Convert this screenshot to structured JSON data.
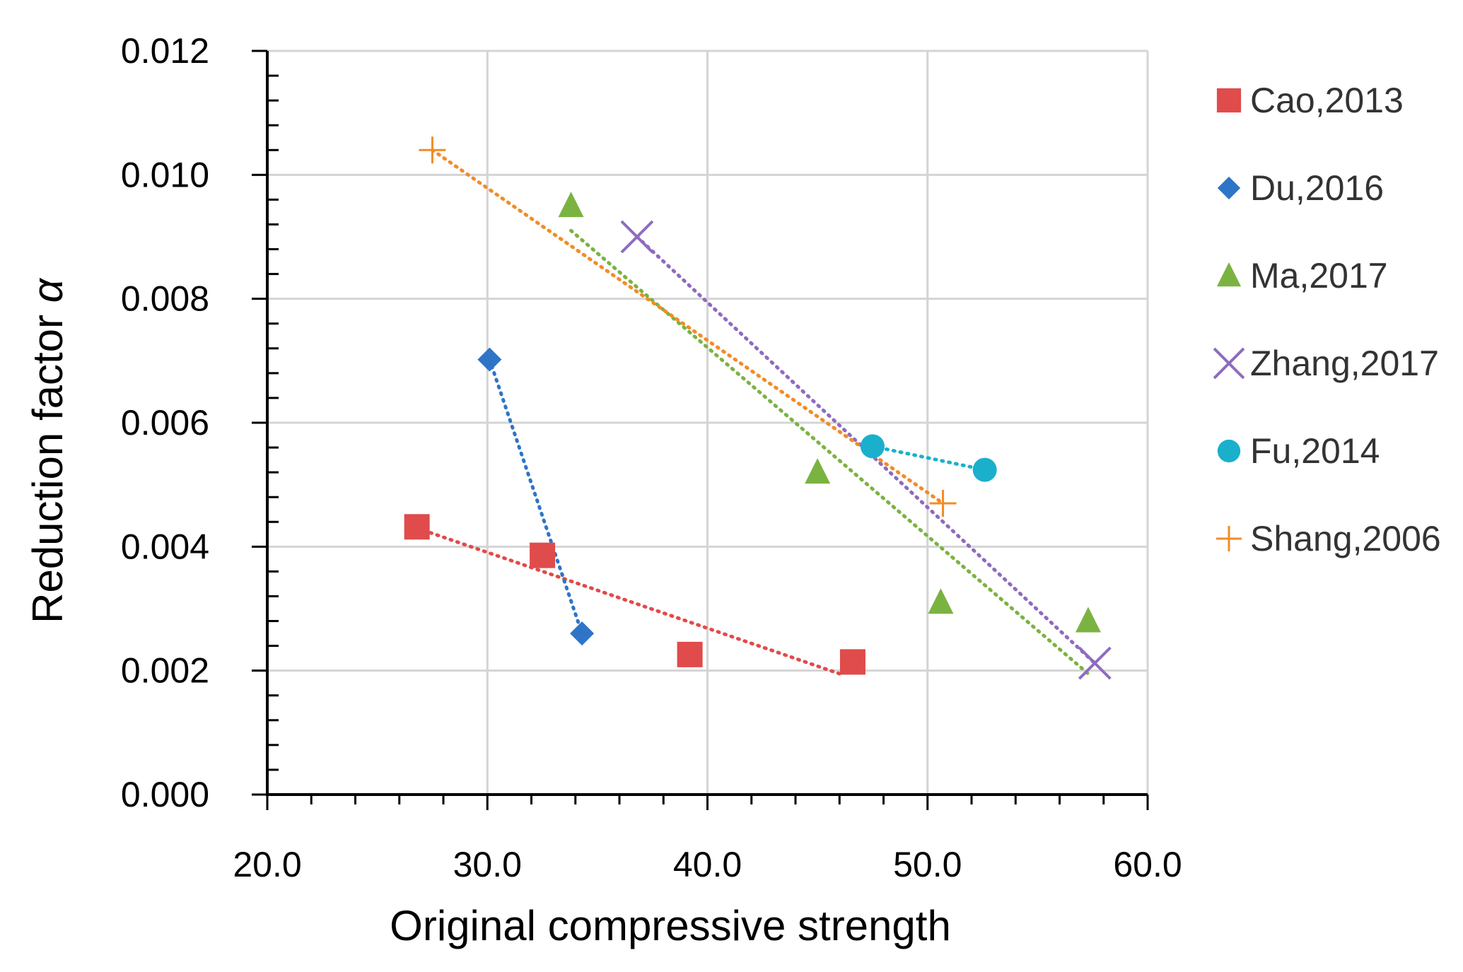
{
  "chart_data": {
    "type": "scatter",
    "title": "",
    "xlabel": "Original compressive strength",
    "ylabel": "Reduction factor",
    "ylabel_symbol": "α",
    "xlim": [
      20,
      60
    ],
    "ylim": [
      0,
      0.012
    ],
    "x_ticks": [
      "20.0",
      "30.0",
      "40.0",
      "50.0",
      "60.0"
    ],
    "y_ticks": [
      "0.000",
      "0.002",
      "0.004",
      "0.006",
      "0.008",
      "0.010",
      "0.012"
    ],
    "grid": true,
    "legend_position": "right",
    "series": [
      {
        "name": "Cao,2013",
        "marker": "square",
        "color": "#e04b4b",
        "points": [
          [
            26.8,
            0.00432
          ],
          [
            32.5,
            0.00386
          ],
          [
            39.2,
            0.00226
          ],
          [
            46.6,
            0.00214
          ]
        ],
        "trendline": [
          [
            26.8,
            0.0043
          ],
          [
            46.0,
            0.00195
          ]
        ]
      },
      {
        "name": "Du,2016",
        "marker": "diamond",
        "color": "#2e75c8",
        "points": [
          [
            30.1,
            0.00702
          ],
          [
            34.3,
            0.0026
          ]
        ],
        "trendline": [
          [
            30.1,
            0.00702
          ],
          [
            34.3,
            0.0026
          ]
        ]
      },
      {
        "name": "Ma,2017",
        "marker": "triangle",
        "color": "#7bb342",
        "points": [
          [
            33.8,
            0.0095
          ],
          [
            45.0,
            0.0052
          ],
          [
            50.6,
            0.0031
          ],
          [
            57.3,
            0.0028
          ]
        ],
        "trendline": [
          [
            33.8,
            0.0091
          ],
          [
            57.3,
            0.00195
          ]
        ]
      },
      {
        "name": "Zhang,2017",
        "marker": "x",
        "color": "#8e6bbf",
        "points": [
          [
            36.8,
            0.009
          ],
          [
            57.6,
            0.00212
          ]
        ],
        "trendline": [
          [
            36.8,
            0.009
          ],
          [
            57.6,
            0.00212
          ]
        ]
      },
      {
        "name": "Fu,2014",
        "marker": "circle",
        "color": "#1ab0cc",
        "points": [
          [
            47.5,
            0.00562
          ],
          [
            52.6,
            0.00524
          ]
        ],
        "trendline": [
          [
            47.5,
            0.00562
          ],
          [
            52.6,
            0.00524
          ]
        ]
      },
      {
        "name": "Shang,2006",
        "marker": "plus",
        "color": "#f28c28",
        "points": [
          [
            27.5,
            0.0104
          ],
          [
            50.7,
            0.0047
          ]
        ],
        "trendline": [
          [
            27.5,
            0.0104
          ],
          [
            50.7,
            0.0047
          ]
        ]
      }
    ]
  }
}
